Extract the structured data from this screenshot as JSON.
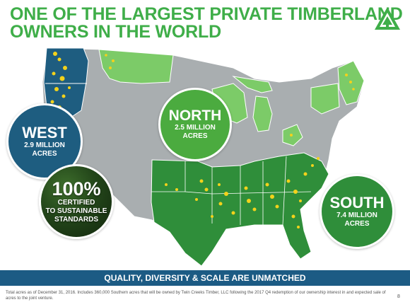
{
  "header": {
    "title_line1": "ONE OF THE LARGEST PRIVATE TIMBERLAND",
    "title_line2": "OWNERS IN THE WORLD"
  },
  "logo": {
    "icon": "weyerhaeuser-logo-icon"
  },
  "regions": {
    "west": {
      "name": "WEST",
      "line1": "2.9 MILLION",
      "line2": "ACRES"
    },
    "north": {
      "name": "NORTH",
      "line1": "2.5 MILLION",
      "line2": "ACRES"
    },
    "south": {
      "name": "SOUTH",
      "line1": "7.4 MILLION",
      "line2": "ACRES"
    }
  },
  "certified": {
    "percent": "100%",
    "line1": "CERTIFIED",
    "line2": "TO SUSTAINABLE",
    "line3": "STANDARDS"
  },
  "banner": {
    "text": "QUALITY, DIVERSITY & SCALE ARE UNMATCHED"
  },
  "footnote": {
    "text": "Total acres as of December 31, 2016. Includes 360,000 Southern acres that will be owned by Twin Creeks Timber, LLC following the 2017 Q4 redemption of our ownership interest in and expected sale of acres to the joint venture."
  },
  "page_number": "8",
  "colors": {
    "title_green": "#3fae49",
    "west_blue": "#1e5d80",
    "north_green": "#4bab3f",
    "south_green": "#2f8e3a",
    "map_gray": "#a9aeb0",
    "timber_yellow": "#f3d21b",
    "banner_blue": "#1c5b84"
  }
}
